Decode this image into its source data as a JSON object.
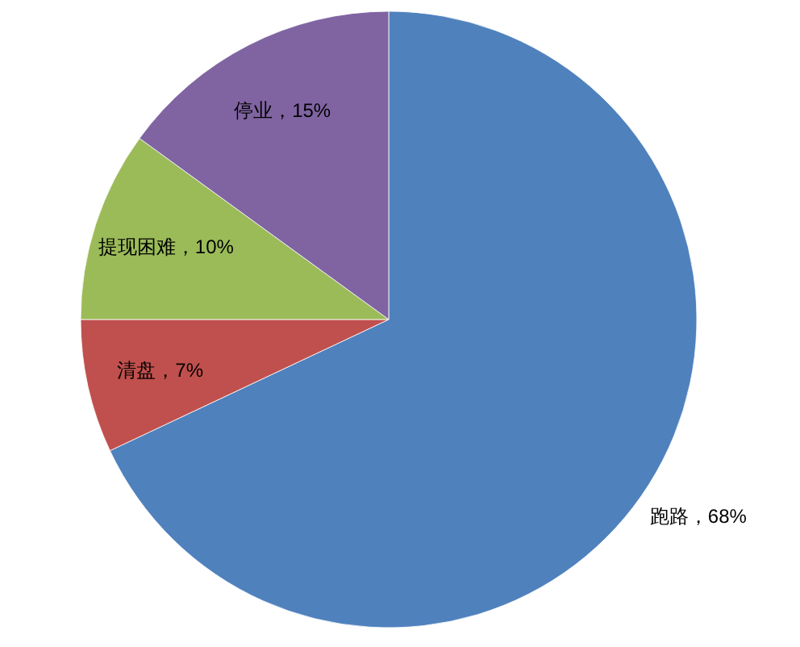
{
  "chart_data": {
    "type": "pie",
    "categories": [
      "跑路",
      "清盘",
      "提现困难",
      "停业"
    ],
    "values": [
      68,
      7,
      10,
      15
    ],
    "colors": [
      "#4f81bd",
      "#c0504d",
      "#9bbb59",
      "#8064a2"
    ],
    "value_labels": [
      "68%",
      "7%",
      "10%",
      "15%"
    ]
  }
}
